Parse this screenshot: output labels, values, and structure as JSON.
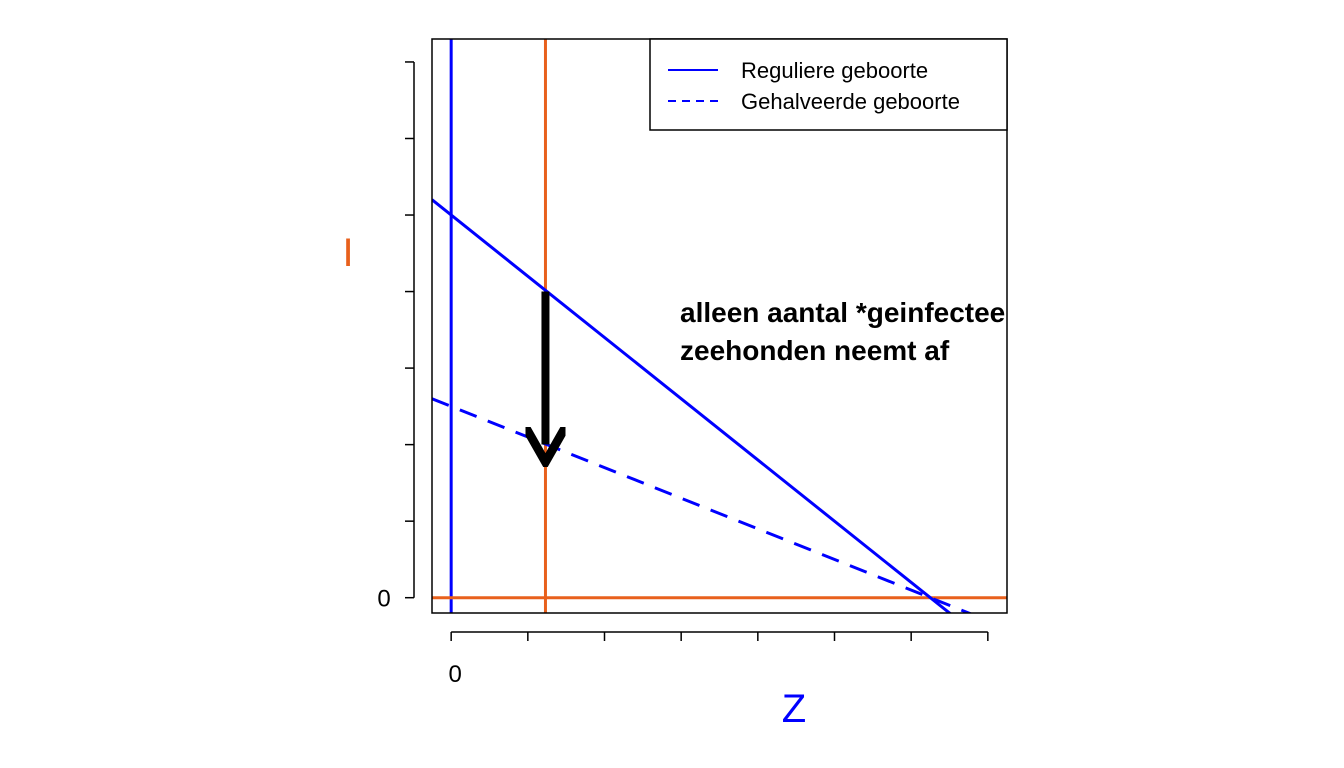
{
  "chart_data": {
    "type": "line",
    "title": "",
    "xlabel": "Z",
    "ylabel": "I",
    "xlabel_color": "#0000ff",
    "ylabel_color": "#e8601c",
    "xlim": [
      -0.25,
      7.25
    ],
    "ylim": [
      -0.2,
      7.3
    ],
    "x_tick_values": [
      0,
      1,
      2,
      3,
      4,
      5,
      6,
      7
    ],
    "y_tick_values": [
      0,
      1,
      2,
      3,
      4,
      5,
      6,
      7
    ],
    "x_tick_labels": [
      {
        "value": 0,
        "label": "0"
      }
    ],
    "y_tick_labels": [
      {
        "value": 0,
        "label": "0"
      }
    ],
    "grid": false,
    "legend_position": "top-right",
    "series": [
      {
        "name": "Reguliere geboorte",
        "style": "solid",
        "color": "#0000ff",
        "x": [
          -0.25,
          7.25
        ],
        "y": [
          5.2,
          -0.8
        ]
      },
      {
        "name": "Gehalveerde geboorte",
        "style": "dashed",
        "color": "#0000ff",
        "x": [
          -0.25,
          7.25
        ],
        "y": [
          2.6,
          -0.4
        ]
      }
    ],
    "reference_lines": [
      {
        "orientation": "vertical",
        "value": 0,
        "color": "#0000ff"
      },
      {
        "orientation": "vertical",
        "value": 1.23,
        "color": "#e8601c"
      },
      {
        "orientation": "horizontal",
        "value": 0,
        "color": "#e8601c"
      }
    ],
    "arrow": {
      "x": 1.23,
      "y_from": 4.0,
      "y_to": 1.95,
      "color": "#000000"
    },
    "annotation": {
      "lines": [
        "alleen aantal *geinfecteerde",
        "zeehonden neemt af"
      ],
      "x": 3.0,
      "y": 3.7
    }
  }
}
